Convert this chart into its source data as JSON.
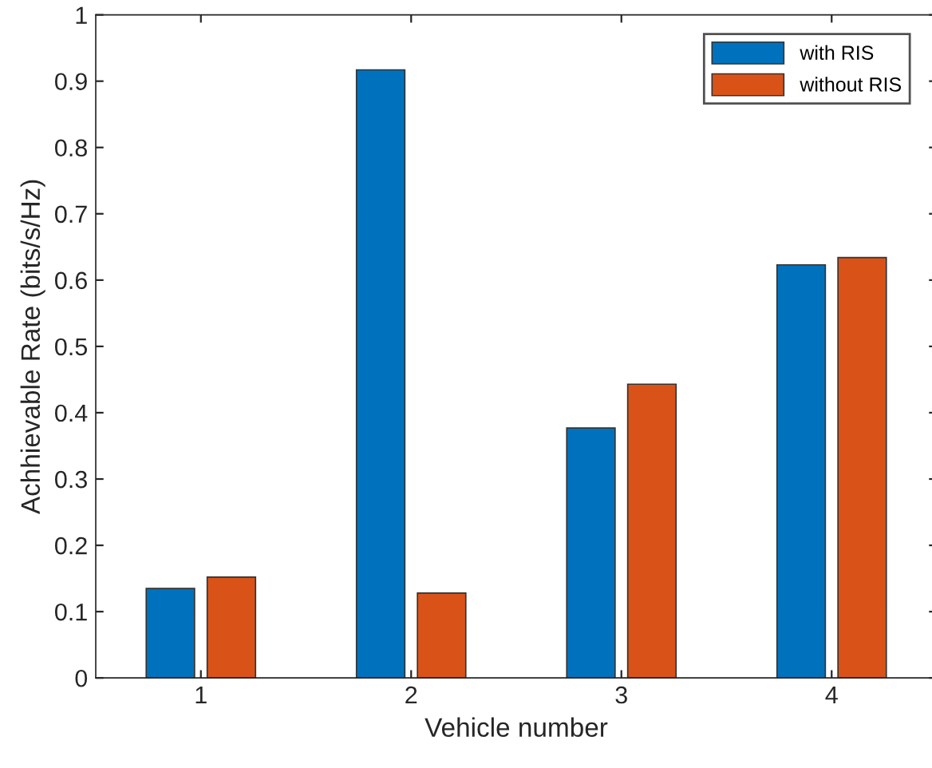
{
  "chart_data": {
    "type": "bar",
    "xlabel": "Vehicle number",
    "ylabel": "Achhievable Rate (bits/s/Hz)",
    "categories": [
      "1",
      "2",
      "3",
      "4"
    ],
    "series": [
      {
        "name": "with RIS",
        "color": "#0072bd",
        "values": [
          0.135,
          0.917,
          0.377,
          0.623
        ]
      },
      {
        "name": "without RIS",
        "color": "#d95319",
        "values": [
          0.152,
          0.128,
          0.443,
          0.634
        ]
      }
    ],
    "ylim": [
      0,
      1
    ],
    "yticks": [
      0,
      0.1,
      0.2,
      0.3,
      0.4,
      0.5,
      0.6,
      0.7,
      0.8,
      0.9,
      1
    ],
    "grid": false,
    "legend": "top right"
  }
}
